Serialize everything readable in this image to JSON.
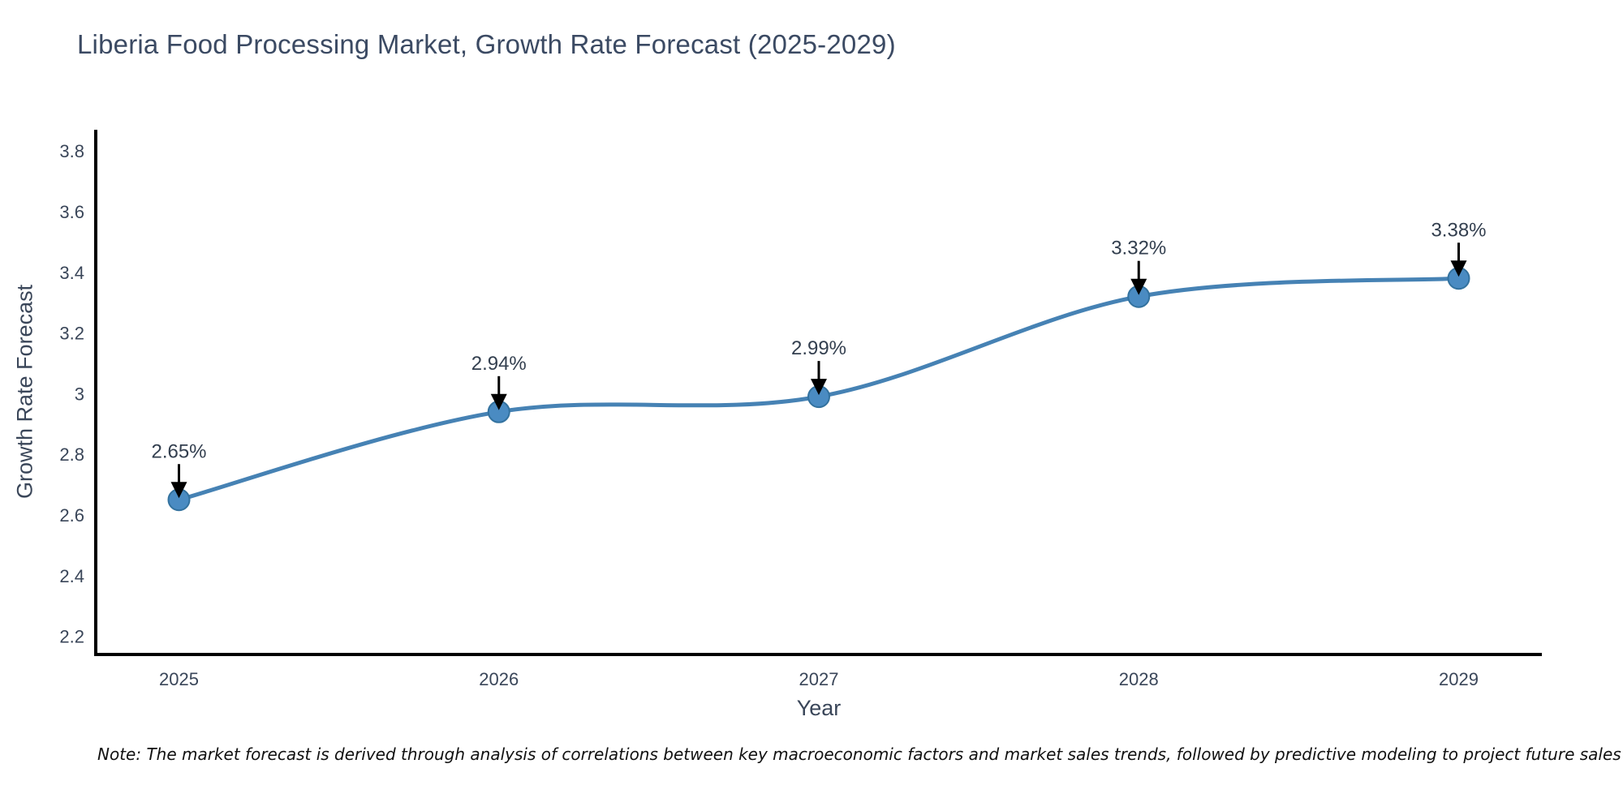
{
  "page": {
    "background": "#ffffff"
  },
  "note": {
    "text": "Note: The market forecast is derived through analysis of correlations between key macroeconomic factors and market sales trends, followed by predictive modeling to project future sales"
  },
  "chart_data": {
    "type": "line",
    "title": "Liberia Food Processing Market, Growth Rate Forecast (2025-2029)",
    "xlabel": "Year",
    "ylabel": "Growth Rate Forecast",
    "x": [
      2025,
      2026,
      2027,
      2028,
      2029
    ],
    "values": [
      2.65,
      2.94,
      2.99,
      3.32,
      3.38
    ],
    "point_labels": [
      "2.65%",
      "2.94%",
      "2.99%",
      "3.32%",
      "3.38%"
    ],
    "x_tick_labels": [
      "2025",
      "2026",
      "2027",
      "2028",
      "2029"
    ],
    "y_ticks": [
      2.2,
      2.4,
      2.6,
      2.8,
      3,
      3.2,
      3.4,
      3.6,
      3.8
    ],
    "y_tick_labels": [
      "2.2",
      "2.4",
      "2.6",
      "2.8",
      "3",
      "3.2",
      "3.4",
      "3.6",
      "3.8"
    ],
    "xlim": [
      2024.74,
      2029.26
    ],
    "ylim": [
      2.14,
      3.87
    ],
    "grid": false,
    "legend": null,
    "curve": "smooth",
    "annotations_have_arrows": true,
    "colors": {
      "line": "#4682b4",
      "marker_fill": "#4a8bc2",
      "marker_edge": "#33729f",
      "axis": "#000000",
      "arrow": "#000000",
      "tick_text": "#3a4659",
      "title_text": "#3b4a63",
      "annotation_text": "#333f4f",
      "note_text": "#111111"
    }
  }
}
